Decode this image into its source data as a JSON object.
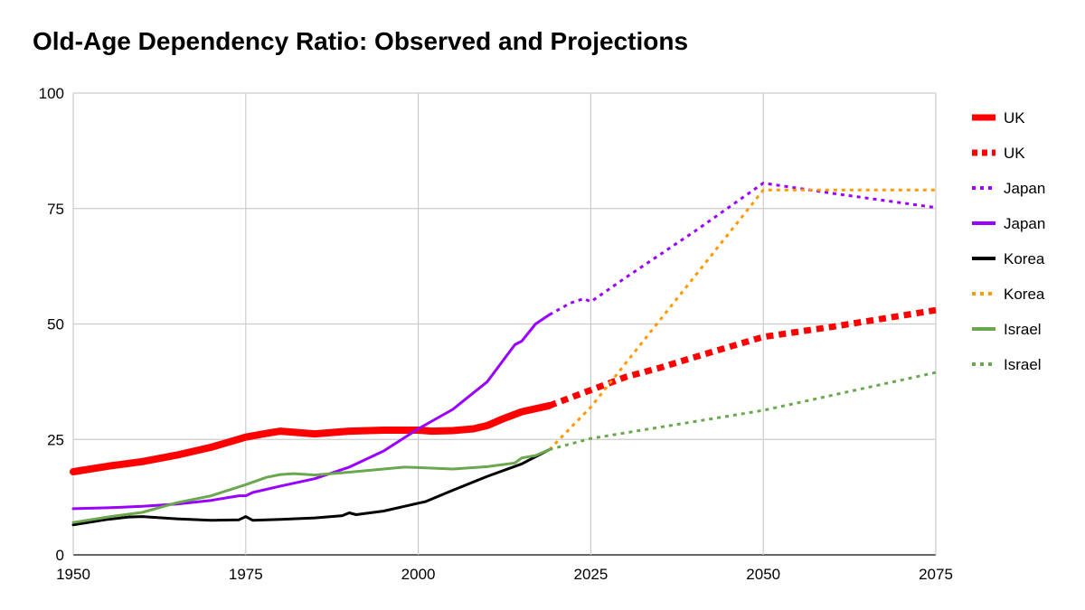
{
  "chart_data": {
    "type": "line",
    "title": "Old-Age Dependency Ratio: Observed and Projections",
    "xlabel": "",
    "ylabel": "",
    "xlim": [
      1950,
      2075
    ],
    "ylim": [
      0,
      100
    ],
    "x_ticks": [
      "1950",
      "1975",
      "2000",
      "2025",
      "2050",
      "2075"
    ],
    "y_ticks": [
      "0",
      "25",
      "50",
      "75",
      "100"
    ],
    "grid": true,
    "legend_position": "right",
    "series": [
      {
        "name": "UK",
        "style": "solid",
        "color": "#ff0000",
        "width": 8,
        "points": [
          [
            1950,
            18
          ],
          [
            1955,
            19.2
          ],
          [
            1960,
            20.2
          ],
          [
            1965,
            21.6
          ],
          [
            1970,
            23.3
          ],
          [
            1975,
            25.5
          ],
          [
            1978,
            26.3
          ],
          [
            1980,
            26.8
          ],
          [
            1985,
            26.2
          ],
          [
            1990,
            26.8
          ],
          [
            1995,
            27.0
          ],
          [
            2000,
            27.0
          ],
          [
            2002,
            26.8
          ],
          [
            2005,
            26.9
          ],
          [
            2008,
            27.3
          ],
          [
            2010,
            28
          ],
          [
            2012,
            29.3
          ],
          [
            2015,
            31
          ],
          [
            2019,
            32.3
          ]
        ]
      },
      {
        "name": "UK",
        "style": "dotted",
        "color": "#ff0000",
        "width": 7,
        "points": [
          [
            2019,
            32.3
          ],
          [
            2025,
            35.7
          ],
          [
            2030,
            38.5
          ],
          [
            2035,
            40.5
          ],
          [
            2040,
            42.8
          ],
          [
            2045,
            45
          ],
          [
            2050,
            47.2
          ],
          [
            2060,
            49.4
          ],
          [
            2075,
            53
          ]
        ]
      },
      {
        "name": "Japan",
        "style": "dotted",
        "color": "#9900ff",
        "width": 3,
        "points": [
          [
            2019,
            52
          ],
          [
            2022,
            54.5
          ],
          [
            2024,
            55.5
          ],
          [
            2025,
            54.8
          ],
          [
            2030,
            60
          ],
          [
            2040,
            70
          ],
          [
            2050,
            80.5
          ],
          [
            2060,
            78.3
          ],
          [
            2075,
            75.2
          ]
        ]
      },
      {
        "name": "Japan",
        "style": "solid",
        "color": "#9900ff",
        "width": 3,
        "points": [
          [
            1950,
            10
          ],
          [
            1955,
            10.2
          ],
          [
            1960,
            10.5
          ],
          [
            1965,
            11
          ],
          [
            1970,
            11.8
          ],
          [
            1974,
            12.8
          ],
          [
            1975,
            12.8
          ],
          [
            1976,
            13.5
          ],
          [
            1980,
            14.9
          ],
          [
            1985,
            16.5
          ],
          [
            1990,
            19
          ],
          [
            1995,
            22.5
          ],
          [
            2000,
            27.3
          ],
          [
            2005,
            31.5
          ],
          [
            2010,
            37.5
          ],
          [
            2014,
            45.5
          ],
          [
            2015,
            46.3
          ],
          [
            2017,
            50
          ],
          [
            2019,
            52
          ]
        ]
      },
      {
        "name": "Korea",
        "style": "solid",
        "color": "#000000",
        "width": 3,
        "points": [
          [
            1950,
            6.5
          ],
          [
            1955,
            7.7
          ],
          [
            1958,
            8.2
          ],
          [
            1960,
            8.3
          ],
          [
            1965,
            7.8
          ],
          [
            1970,
            7.5
          ],
          [
            1974,
            7.6
          ],
          [
            1975,
            8.3
          ],
          [
            1976,
            7.5
          ],
          [
            1980,
            7.7
          ],
          [
            1985,
            8.0
          ],
          [
            1989,
            8.5
          ],
          [
            1990,
            9.1
          ],
          [
            1991,
            8.7
          ],
          [
            1995,
            9.5
          ],
          [
            2000,
            11.2
          ],
          [
            2001,
            11.5
          ],
          [
            2005,
            14
          ],
          [
            2010,
            17
          ],
          [
            2015,
            19.7
          ],
          [
            2019,
            22.8
          ]
        ]
      },
      {
        "name": "Korea",
        "style": "dotted",
        "color": "#ff9900",
        "width": 3,
        "points": [
          [
            2019,
            22.8
          ],
          [
            2025,
            32
          ],
          [
            2050,
            79
          ],
          [
            2075,
            79
          ]
        ]
      },
      {
        "name": "Israel",
        "style": "solid",
        "color": "#6aa84f",
        "width": 3,
        "points": [
          [
            1950,
            7
          ],
          [
            1955,
            8.2
          ],
          [
            1960,
            9.2
          ],
          [
            1965,
            11.3
          ],
          [
            1970,
            12.8
          ],
          [
            1975,
            15.2
          ],
          [
            1978,
            16.8
          ],
          [
            1980,
            17.4
          ],
          [
            1982,
            17.6
          ],
          [
            1985,
            17.3
          ],
          [
            1990,
            17.9
          ],
          [
            1995,
            18.6
          ],
          [
            1998,
            19
          ],
          [
            2000,
            18.9
          ],
          [
            2005,
            18.6
          ],
          [
            2010,
            19.1
          ],
          [
            2014,
            19.9
          ],
          [
            2015,
            21
          ],
          [
            2017,
            21.5
          ],
          [
            2019,
            22.8
          ]
        ]
      },
      {
        "name": "Israel",
        "style": "dotted",
        "color": "#6aa84f",
        "width": 3,
        "points": [
          [
            2019,
            22.8
          ],
          [
            2025,
            25.2
          ],
          [
            2050,
            31.3
          ],
          [
            2075,
            39.5
          ]
        ]
      }
    ]
  }
}
